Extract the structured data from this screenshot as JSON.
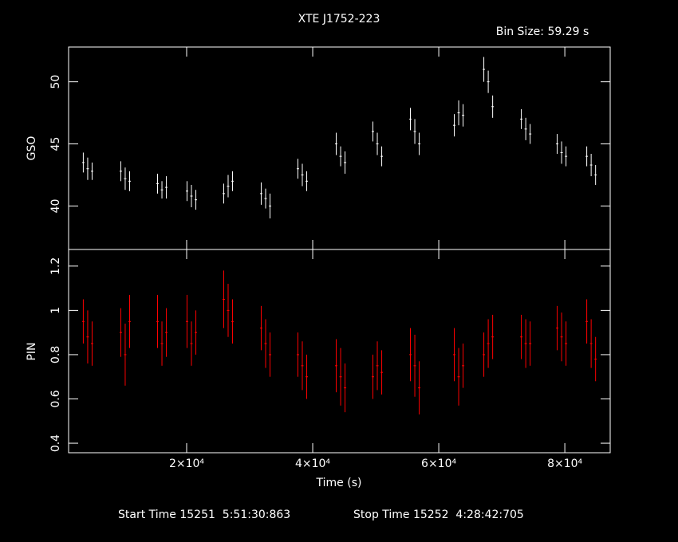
{
  "chart_data": [
    {
      "type": "scatter",
      "title": "XTE J1752-223",
      "subtitle": "Bin Size: 59.29 s",
      "ylabel": "GSO",
      "color": "#ffffff",
      "x": [
        3600,
        4300,
        5000,
        9550,
        10250,
        10950,
        15380,
        16080,
        16780,
        20060,
        20760,
        21460,
        25880,
        26580,
        27280,
        31830,
        32530,
        33230,
        37650,
        38350,
        39050,
        43730,
        44430,
        45130,
        49550,
        50250,
        50950,
        55500,
        56200,
        56900,
        62460,
        63160,
        63860,
        67150,
        67850,
        68550,
        73100,
        73800,
        74500,
        78790,
        79490,
        80190,
        83480,
        84180,
        84880
      ],
      "values": [
        43.5,
        43.0,
        42.8,
        42.8,
        42.2,
        42.0,
        41.8,
        41.3,
        41.5,
        41.2,
        40.8,
        40.5,
        41.0,
        41.6,
        42.0,
        41.0,
        40.6,
        40.0,
        43.0,
        42.5,
        42.0,
        45.0,
        44.0,
        43.5,
        46.0,
        45.0,
        44.0,
        47.0,
        46.0,
        45.0,
        46.5,
        47.5,
        47.3,
        51.0,
        50.0,
        48.0,
        47.0,
        46.2,
        45.8,
        45.0,
        44.3,
        44.0,
        44.0,
        43.3,
        42.5
      ],
      "errors": [
        0.8,
        0.9,
        0.7,
        0.8,
        0.9,
        0.8,
        0.8,
        0.7,
        0.9,
        0.8,
        0.9,
        0.8,
        0.8,
        0.9,
        0.8,
        0.9,
        0.8,
        1.0,
        0.8,
        0.9,
        0.8,
        0.9,
        0.8,
        0.9,
        0.8,
        0.9,
        0.8,
        0.9,
        1.0,
        0.9,
        0.9,
        1.0,
        0.9,
        1.0,
        0.9,
        0.9,
        0.8,
        0.9,
        0.8,
        0.8,
        0.9,
        0.8,
        0.8,
        0.9,
        0.8
      ],
      "ylim": [
        36.5,
        52.8
      ],
      "yticks": [
        40,
        45,
        50
      ]
    },
    {
      "type": "scatter",
      "ylabel": "PIN",
      "xlabel": "Time (s)",
      "color": "#ff0000",
      "annotations": [
        "Start Time 15251  5:51:30:863",
        "Stop Time 15252  4:28:42:705"
      ],
      "x": [
        3600,
        4300,
        5000,
        9550,
        10250,
        10950,
        15380,
        16080,
        16780,
        20060,
        20760,
        21460,
        25880,
        26580,
        27280,
        31830,
        32530,
        33230,
        37650,
        38350,
        39050,
        43730,
        44430,
        45130,
        49550,
        50250,
        50950,
        55500,
        56200,
        56900,
        62460,
        63160,
        63860,
        67150,
        67850,
        68550,
        73100,
        73800,
        74500,
        78790,
        79490,
        80190,
        83480,
        84180,
        84880
      ],
      "values": [
        0.95,
        0.88,
        0.85,
        0.9,
        0.8,
        0.95,
        0.95,
        0.85,
        0.9,
        0.95,
        0.85,
        0.9,
        1.05,
        1.0,
        0.95,
        0.92,
        0.85,
        0.8,
        0.8,
        0.75,
        0.7,
        0.75,
        0.7,
        0.65,
        0.7,
        0.75,
        0.72,
        0.8,
        0.75,
        0.65,
        0.8,
        0.7,
        0.75,
        0.8,
        0.85,
        0.88,
        0.88,
        0.85,
        0.85,
        0.92,
        0.88,
        0.85,
        0.95,
        0.85,
        0.78
      ],
      "errors": [
        0.1,
        0.12,
        0.1,
        0.11,
        0.14,
        0.12,
        0.12,
        0.1,
        0.11,
        0.12,
        0.1,
        0.1,
        0.13,
        0.12,
        0.1,
        0.1,
        0.11,
        0.1,
        0.1,
        0.11,
        0.1,
        0.12,
        0.13,
        0.11,
        0.1,
        0.11,
        0.1,
        0.12,
        0.14,
        0.12,
        0.12,
        0.13,
        0.1,
        0.1,
        0.11,
        0.1,
        0.1,
        0.11,
        0.1,
        0.1,
        0.11,
        0.1,
        0.1,
        0.11,
        0.1
      ],
      "xlim": [
        1270,
        87200
      ],
      "xticks": [
        {
          "value": 20000,
          "label": "2×10⁴"
        },
        {
          "value": 40000,
          "label": "4×10⁴"
        },
        {
          "value": 60000,
          "label": "6×10⁴"
        },
        {
          "value": 80000,
          "label": "8×10⁴"
        }
      ],
      "ylim": [
        0.357,
        1.275
      ],
      "yticks": [
        0.4,
        0.6,
        0.8,
        1,
        1.2
      ]
    }
  ]
}
